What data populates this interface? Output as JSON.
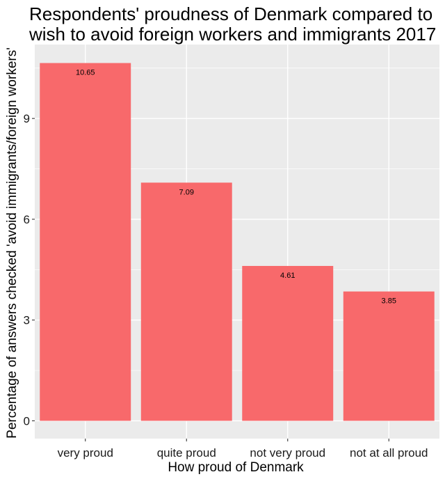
{
  "chart_data": {
    "type": "bar",
    "title": "Respondents' proudness of Denmark compared to\nwish to avoid foreign workers and immigrants 2017",
    "xlabel": "How proud of Denmark",
    "ylabel": "Percentage of answers checked 'avoid immigrants/foreign workers'",
    "categories": [
      "very proud",
      "quite proud",
      "not very proud",
      "not at all proud"
    ],
    "values": [
      10.65,
      7.09,
      4.61,
      3.85
    ],
    "data_labels": [
      "10.65",
      "7.09",
      "4.61",
      "3.85"
    ],
    "y_ticks": [
      0,
      3,
      6,
      9
    ],
    "y_tick_labels": [
      "0",
      "3",
      "6",
      "9"
    ],
    "ylim": [
      -0.53,
      11.2
    ],
    "grid": true,
    "bar_color": "#F8696B",
    "panel_color": "#EBEBEB",
    "grid_color": "#FFFFFF"
  }
}
